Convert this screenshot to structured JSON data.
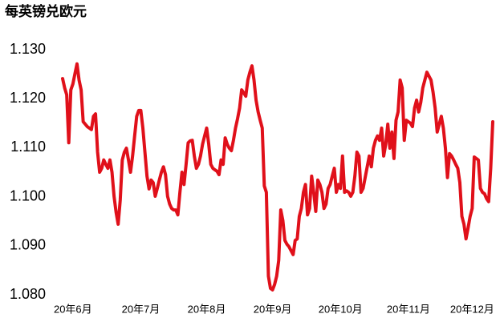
{
  "chart_data": {
    "type": "line",
    "title": "每英镑兑欧元",
    "color": "#e0101a",
    "ylim": [
      1.08,
      1.13
    ],
    "yticks": [
      {
        "value": 1.08,
        "label": "1.080"
      },
      {
        "value": 1.09,
        "label": "1.090"
      },
      {
        "value": 1.1,
        "label": "1.100"
      },
      {
        "value": 1.11,
        "label": "1.110"
      },
      {
        "value": 1.12,
        "label": "1.120"
      },
      {
        "value": 1.13,
        "label": "1.130"
      }
    ],
    "categories": [
      null,
      null,
      null,
      null,
      null,
      "20年6月",
      null,
      null,
      null,
      null,
      null,
      null,
      null,
      null,
      null,
      null,
      null,
      null,
      null,
      null,
      null,
      null,
      null,
      null,
      null,
      null,
      null,
      null,
      null,
      null,
      null,
      null,
      null,
      null,
      null,
      null,
      null,
      null,
      "20年7月",
      null,
      null,
      null,
      null,
      null,
      null,
      null,
      null,
      null,
      null,
      null,
      null,
      null,
      null,
      null,
      null,
      null,
      null,
      null,
      null,
      null,
      null,
      null,
      null,
      null,
      null,
      null,
      null,
      null,
      null,
      null,
      "20年8月",
      null,
      null,
      null,
      null,
      null,
      null,
      null,
      null,
      null,
      null,
      null,
      null,
      null,
      null,
      null,
      null,
      null,
      null,
      null,
      null,
      null,
      null,
      null,
      null,
      null,
      null,
      null,
      null,
      null,
      null,
      null,
      "20年9月",
      null,
      null,
      null,
      null,
      null,
      null,
      null,
      null,
      null,
      null,
      null,
      null,
      null,
      null,
      null,
      null,
      null,
      null,
      null,
      null,
      null,
      null,
      null,
      null,
      null,
      null,
      null,
      null,
      null,
      null,
      null,
      null,
      "20年10月",
      null,
      null,
      null,
      null,
      null,
      null,
      null,
      null,
      null,
      null,
      null,
      null,
      null,
      null,
      null,
      null,
      null,
      null,
      null,
      null,
      null,
      null,
      null,
      null,
      null,
      null,
      null,
      null,
      null,
      null,
      null,
      null,
      "20年11月",
      null,
      null,
      null,
      null,
      null,
      null,
      null,
      null,
      null,
      null,
      null,
      null,
      null,
      null,
      null,
      null,
      null,
      null,
      null,
      null,
      null,
      null,
      null,
      null,
      null,
      null,
      null,
      null,
      null,
      null,
      "20年12月",
      null,
      null,
      null,
      null,
      null,
      null,
      null,
      null,
      null,
      null
    ],
    "values": [
      1.1241,
      1.1222,
      1.1208,
      1.111,
      1.1218,
      1.123,
      1.1251,
      1.1271,
      1.1238,
      1.1218,
      1.1153,
      1.1148,
      1.1143,
      1.114,
      1.1137,
      1.1164,
      1.1169,
      1.1091,
      1.105,
      1.1058,
      1.1075,
      1.1066,
      1.1058,
      1.1075,
      1.105,
      1.1001,
      1.0968,
      1.0944,
      1.0993,
      1.1075,
      1.1091,
      1.1099,
      1.1075,
      1.105,
      1.1083,
      1.1124,
      1.1164,
      1.1176,
      1.1176,
      1.114,
      1.1091,
      1.1042,
      1.1016,
      1.1034,
      1.1029,
      1.1001,
      1.1017,
      1.1034,
      1.105,
      1.1061,
      1.1045,
      1.1001,
      1.0985,
      1.0976,
      1.0973,
      1.0973,
      1.0963,
      1.1009,
      1.105,
      1.1025,
      1.1066,
      1.111,
      1.1114,
      1.1115,
      1.1083,
      1.1058,
      1.1066,
      1.1083,
      1.1107,
      1.1124,
      1.114,
      1.1107,
      1.1066,
      1.1058,
      1.1055,
      1.1052,
      1.1045,
      1.1075,
      1.1066,
      1.112,
      1.1107,
      1.1099,
      1.1094,
      1.1115,
      1.114,
      1.1159,
      1.1181,
      1.1218,
      1.1212,
      1.1205,
      1.1238,
      1.1254,
      1.1267,
      1.1238,
      1.1197,
      1.1173,
      1.1156,
      1.114,
      1.1022,
      1.1009,
      1.0838,
      1.0813,
      1.081,
      1.0821,
      1.0838,
      1.087,
      1.0973,
      1.0952,
      1.0911,
      1.0903,
      1.0898,
      1.089,
      1.0882,
      1.0911,
      1.0914,
      1.096,
      1.0976,
      1.1009,
      1.1025,
      1.0963,
      1.0976,
      1.1042,
      1.1009,
      1.097,
      1.1034,
      1.1025,
      1.1009,
      1.0976,
      1.0985,
      1.1017,
      1.1025,
      1.1042,
      1.1058,
      1.1009,
      1.1025,
      1.1017,
      1.1083,
      1.1009,
      1.1012,
      1.1009,
      1.1001,
      1.1009,
      1.1042,
      1.1091,
      1.1083,
      1.1009,
      1.1017,
      1.1039,
      1.1061,
      1.1083,
      1.1061,
      1.1099,
      1.1115,
      1.1124,
      1.1115,
      1.114,
      1.1083,
      1.1107,
      1.1148,
      1.1099,
      1.1132,
      1.1078,
      1.1156,
      1.1173,
      1.1238,
      1.1222,
      1.1115,
      1.1156,
      1.1153,
      1.115,
      1.1143,
      1.1181,
      1.1197,
      1.1173,
      1.1192,
      1.1222,
      1.1238,
      1.1254,
      1.1246,
      1.1238,
      1.1213,
      1.1181,
      1.1132,
      1.1148,
      1.1164,
      1.114,
      1.1099,
      1.1039,
      1.1088,
      1.1083,
      1.1075,
      1.1066,
      1.1058,
      1.1029,
      1.096,
      1.0944,
      1.0914,
      1.0936,
      1.096,
      1.0976,
      1.1081,
      1.1078,
      1.1075,
      1.1017,
      1.1009,
      1.1006,
      1.0996,
      1.099,
      1.1058,
      1.1153
    ]
  }
}
